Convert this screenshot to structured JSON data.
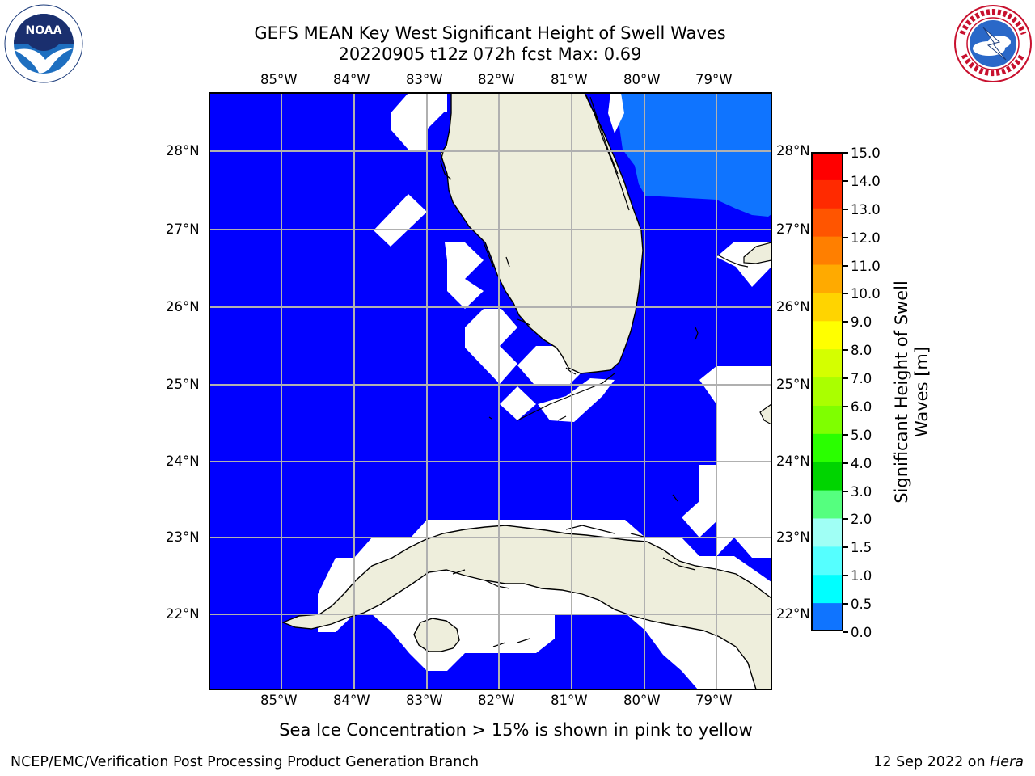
{
  "header": {
    "title_line1": "GEFS MEAN Key West Significant Height of Swell Waves",
    "title_line2": "20220905 t12z 072h fcst   Max: 0.69"
  },
  "logos": {
    "left": {
      "icon": "noaa-logo-icon",
      "text": "NOAA",
      "ring_text": "NATIONAL OCEANIC AND ATMOSPHERIC ADMINISTRATION · U.S. DEPARTMENT OF COMMERCE"
    },
    "right": {
      "icon": "nws-logo-icon",
      "ring_text": "NATIONAL WEATHER SERVICE"
    }
  },
  "map": {
    "lon_labels": [
      "85°W",
      "84°W",
      "83°W",
      "82°W",
      "81°W",
      "80°W",
      "79°W"
    ],
    "lat_labels": [
      "28°N",
      "27°N",
      "26°N",
      "25°N",
      "24°N",
      "23°N",
      "22°N"
    ],
    "colors": {
      "ocean_low": "#0000ff",
      "ocean_05": "#0f74ff",
      "land": "#eeeedc",
      "no_data": "#ffffff",
      "grid": "#b0b0b0"
    }
  },
  "colorbar": {
    "levels": [
      "15.0",
      "14.0",
      "13.0",
      "12.0",
      "11.0",
      "10.0",
      "9.0",
      "8.0",
      "7.0",
      "6.0",
      "5.0",
      "4.0",
      "3.0",
      "2.0",
      "1.5",
      "1.0",
      "0.5",
      "0.0"
    ],
    "colors": [
      "#ff0000",
      "#ff2a00",
      "#ff5500",
      "#ff7f00",
      "#ffaa00",
      "#ffd400",
      "#ffff00",
      "#d4ff00",
      "#aaff00",
      "#7fff00",
      "#2aff00",
      "#00d400",
      "#55ff7f",
      "#a0fff5",
      "#55ffff",
      "#00ffff",
      "#0f74ff",
      "#0000ff"
    ],
    "label": "Significant Height of Swell Waves [m]",
    "label_line1": "Significant Height of Swell",
    "label_line2": "Waves [m]"
  },
  "note": "Sea Ice Concentration > 15% is shown in pink to yellow",
  "footer": {
    "left": "NCEP/EMC/Verification Post Processing Product Generation Branch",
    "date": "12 Sep 2022 on ",
    "machine": "Hera"
  }
}
